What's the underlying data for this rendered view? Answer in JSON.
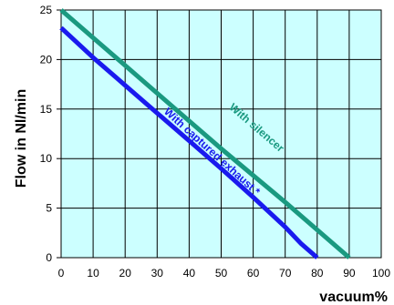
{
  "colors": {
    "plot_background": "#ccffff",
    "grid": "#000000",
    "series_silencer": "#1a9980",
    "series_exhaust": "#1a1aee"
  },
  "chart_data": {
    "type": "line",
    "title": "",
    "xlabel": "vacuum%",
    "ylabel": "Flow in  Nl/min",
    "xlim": [
      0,
      100
    ],
    "ylim": [
      0,
      25
    ],
    "x_ticks": [
      0,
      10,
      20,
      30,
      40,
      50,
      60,
      70,
      80,
      90,
      100
    ],
    "y_ticks": [
      0,
      5,
      10,
      15,
      20,
      25
    ],
    "grid": true,
    "legend": "none",
    "series": [
      {
        "name": "With silencer",
        "color": "#1a9980",
        "x": [
          0,
          10,
          20,
          30,
          40,
          50,
          60,
          70,
          80,
          90
        ],
        "y": [
          25,
          22.2,
          19.4,
          16.6,
          13.8,
          11.0,
          8.3,
          5.6,
          2.8,
          0
        ]
      },
      {
        "name": "With captured exhaust *",
        "color": "#1a1aee",
        "x": [
          0,
          10,
          20,
          30,
          40,
          50,
          60,
          70,
          75,
          80
        ],
        "y": [
          23.2,
          20.2,
          17.4,
          14.6,
          11.8,
          9.0,
          6.1,
          3.1,
          1.4,
          0
        ]
      }
    ]
  }
}
